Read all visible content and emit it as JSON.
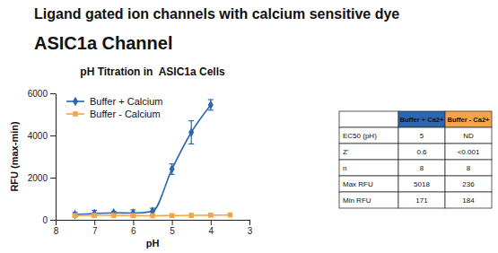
{
  "header": {
    "title": "Ligand gated ion channels with calcium sensitive dye",
    "subtitle": "ASIC1a Channel"
  },
  "chart_data": {
    "type": "line",
    "title": "pH Titration in  ASIC1a Cells",
    "x_label": "pH",
    "y_label": "RFU (max-min)",
    "xlim": [
      8,
      3
    ],
    "xticks": [
      8,
      7,
      6,
      5,
      4,
      3
    ],
    "ylim": [
      0,
      6000
    ],
    "yticks": [
      0,
      2000,
      4000,
      6000
    ],
    "grid": false,
    "legend": "top-left",
    "series": [
      {
        "name": "Buffer + Calcium",
        "color": "#2a67b0",
        "marker": "diamond",
        "line_style": "solid",
        "x": [
          7.5,
          7,
          6.5,
          6,
          5.5,
          5,
          4.5,
          4
        ],
        "values": [
          250,
          300,
          330,
          320,
          400,
          2400,
          4150,
          5450
        ],
        "errors": [
          100,
          150,
          60,
          150,
          150,
          250,
          550,
          250
        ]
      },
      {
        "name": "Buffer - Calcium",
        "color": "#f5a547",
        "marker": "square",
        "line_style": "solid",
        "x": [
          7.5,
          7,
          6.5,
          6,
          5.5,
          5,
          4.5,
          4,
          3.5
        ],
        "values": [
          200,
          210,
          210,
          200,
          190,
          200,
          210,
          220,
          230
        ]
      }
    ]
  },
  "table": {
    "columns": [
      "Buffer + Ca2+",
      "Buffer - Ca2+"
    ],
    "rows": [
      [
        "EC50 (pH)",
        5,
        "ND"
      ],
      [
        "Z'",
        0.6,
        "<0.001"
      ],
      [
        "n",
        8,
        8
      ],
      [
        "Max RFU",
        5018,
        236
      ],
      [
        "Min RFU",
        171,
        184
      ]
    ]
  }
}
